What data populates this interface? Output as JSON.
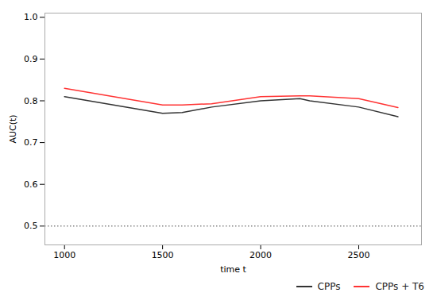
{
  "chart_data": {
    "type": "line",
    "x": [
      1000,
      1250,
      1500,
      1600,
      1750,
      2000,
      2200,
      2250,
      2500,
      2700
    ],
    "series": [
      {
        "name": "CPPs",
        "color": "#333333",
        "values": [
          0.81,
          0.79,
          0.77,
          0.772,
          0.785,
          0.8,
          0.805,
          0.8,
          0.785,
          0.762
        ]
      },
      {
        "name": "CPPs + T6",
        "color": "#ff3333",
        "values": [
          0.83,
          0.81,
          0.79,
          0.79,
          0.793,
          0.81,
          0.812,
          0.812,
          0.805,
          0.784
        ]
      }
    ],
    "hline": {
      "y": 0.5,
      "color": "#444444",
      "line_style": "dotted"
    },
    "xlabel": "time t",
    "ylabel": "AUC(t)",
    "xlim": [
      900,
      2820
    ],
    "ylim": [
      0.455,
      1.01
    ],
    "xticks": [
      1000,
      1500,
      2000,
      2500
    ],
    "yticks": [
      0.5,
      0.6,
      0.7,
      0.8,
      0.9,
      {
        "value": 1.0,
        "label": "1.0"
      }
    ],
    "grid": false,
    "legend": "lower right"
  }
}
